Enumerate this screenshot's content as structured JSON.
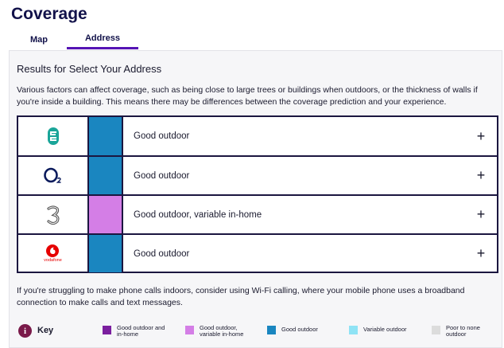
{
  "page": {
    "title": "Coverage"
  },
  "tabs": [
    {
      "label": "Map",
      "active": false
    },
    {
      "label": "Address",
      "active": true
    }
  ],
  "results": {
    "heading": "Results for Select Your Address",
    "intro": "Various factors can affect coverage, such as being close to large trees or buildings when outdoors, or the thickness of walls if you're inside a building. This means there may be differences between the coverage prediction and your experience."
  },
  "networks": [
    {
      "logo": "ee-logo",
      "coverage": "Good outdoor",
      "color": "#1a86c0",
      "expand": "+"
    },
    {
      "logo": "o2-logo",
      "coverage": "Good outdoor",
      "color": "#1a86c0",
      "expand": "+"
    },
    {
      "logo": "three-logo",
      "coverage": "Good outdoor, variable in-home",
      "color": "#d47ee6",
      "expand": "+"
    },
    {
      "logo": "vodafone-logo",
      "logo_text": "vodafone",
      "coverage": "Good outdoor",
      "color": "#1a86c0",
      "expand": "+"
    }
  ],
  "footer": {
    "text": "If you're struggling to make phone calls indoors, consider using Wi-Fi calling, where your mobile phone uses a broadband connection to make calls and text messages."
  },
  "key": {
    "icon": "info-icon",
    "icon_glyph": "i",
    "label": "Key",
    "items": [
      {
        "label": "Good outdoor and in-home",
        "color": "#7b1f9f"
      },
      {
        "label": "Good outdoor, variable in-home",
        "color": "#d47ee6"
      },
      {
        "label": "Good outdoor",
        "color": "#1a86c0"
      },
      {
        "label": "Variable outdoor",
        "color": "#8fe3f5"
      },
      {
        "label": "Poor to none outdoor",
        "color": "#dcdcdc"
      }
    ]
  }
}
